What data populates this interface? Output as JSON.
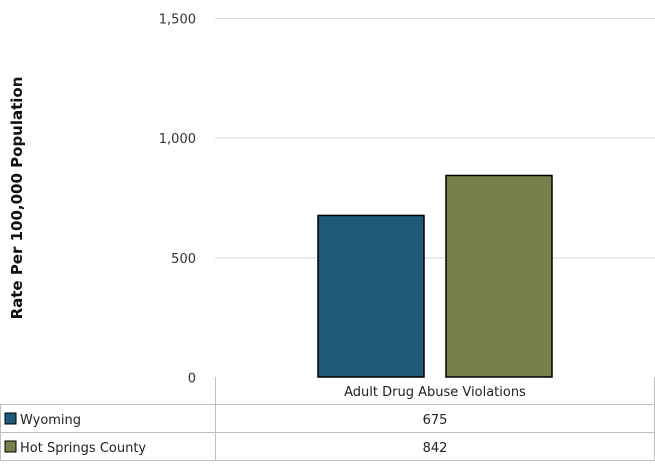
{
  "chart_data": {
    "type": "bar",
    "categories": [
      "Adult Drug Abuse Violations"
    ],
    "series": [
      {
        "name": "Wyoming",
        "values": [
          675
        ],
        "color": "#1f5a7a"
      },
      {
        "name": "Hot Springs County",
        "values": [
          842
        ],
        "color": "#76804a"
      }
    ],
    "ylabel": "Rate Per 100,000 Population",
    "ylim": [
      0,
      1500
    ],
    "yticks": [
      0,
      500,
      1000,
      1500
    ],
    "ytick_labels": [
      "0",
      "500",
      "1,000",
      "1,500"
    ],
    "grid": true,
    "legend": "data-table-below",
    "data_table": {
      "header": "Adult Drug Abuse Violations",
      "rows": [
        {
          "label": "Wyoming",
          "value": "675"
        },
        {
          "label": "Hot Springs County",
          "value": "842"
        }
      ]
    }
  }
}
